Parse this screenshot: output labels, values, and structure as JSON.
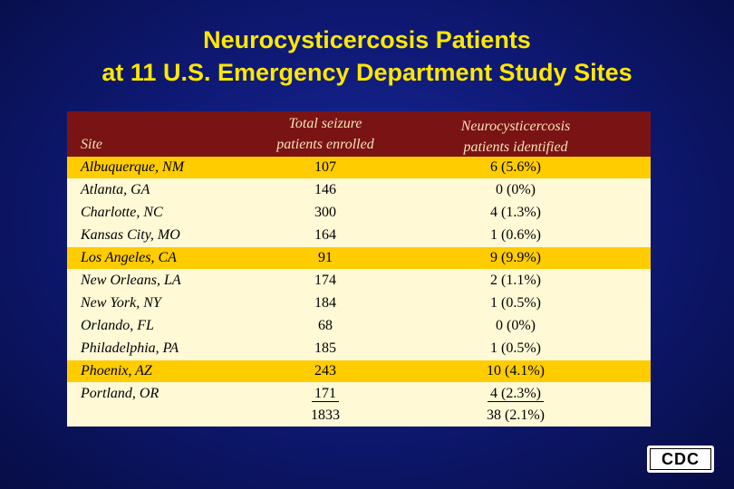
{
  "title": {
    "line1": "Neurocysticercosis Patients",
    "line2": "at 11 U.S. Emergency Department Study Sites"
  },
  "table": {
    "headers": {
      "site": "Site",
      "total_line1": "Total seizure",
      "total_line2": "patients enrolled",
      "neuro_line1": "Neurocysticercosis",
      "neuro_line2": "patients identified"
    },
    "rows": [
      {
        "site": "Albuquerque, NM",
        "total": "107",
        "neuro": "6 (5.6%)",
        "highlight": true
      },
      {
        "site": "Atlanta, GA",
        "total": "146",
        "neuro": "0 (0%)",
        "highlight": false
      },
      {
        "site": "Charlotte, NC",
        "total": "300",
        "neuro": "4 (1.3%)",
        "highlight": false
      },
      {
        "site": "Kansas City, MO",
        "total": "164",
        "neuro": "1 (0.6%)",
        "highlight": false
      },
      {
        "site": "Los Angeles, CA",
        "total": "91",
        "neuro": "9 (9.9%)",
        "highlight": true
      },
      {
        "site": "New Orleans, LA",
        "total": "174",
        "neuro": "2 (1.1%)",
        "highlight": false
      },
      {
        "site": "New York, NY",
        "total": "184",
        "neuro": "1 (0.5%)",
        "highlight": false
      },
      {
        "site": "Orlando, FL",
        "total": "68",
        "neuro": "0 (0%)",
        "highlight": false
      },
      {
        "site": "Philadelphia, PA",
        "total": "185",
        "neuro": "1 (0.5%)",
        "highlight": false
      },
      {
        "site": "Phoenix, AZ",
        "total": "243",
        "neuro": "10 (4.1%)",
        "highlight": true
      },
      {
        "site": "Portland, OR",
        "total": "171",
        "neuro": "4 (2.3%)",
        "highlight": false
      }
    ],
    "totals": {
      "total": "1833",
      "neuro": "38 (2.1%)"
    }
  },
  "logo": {
    "text": "CDC"
  },
  "colors": {
    "title": "#ffe800",
    "header_bg": "#7a1414",
    "highlight_row": "#ffcc00",
    "table_bg": "#fff9d6"
  }
}
